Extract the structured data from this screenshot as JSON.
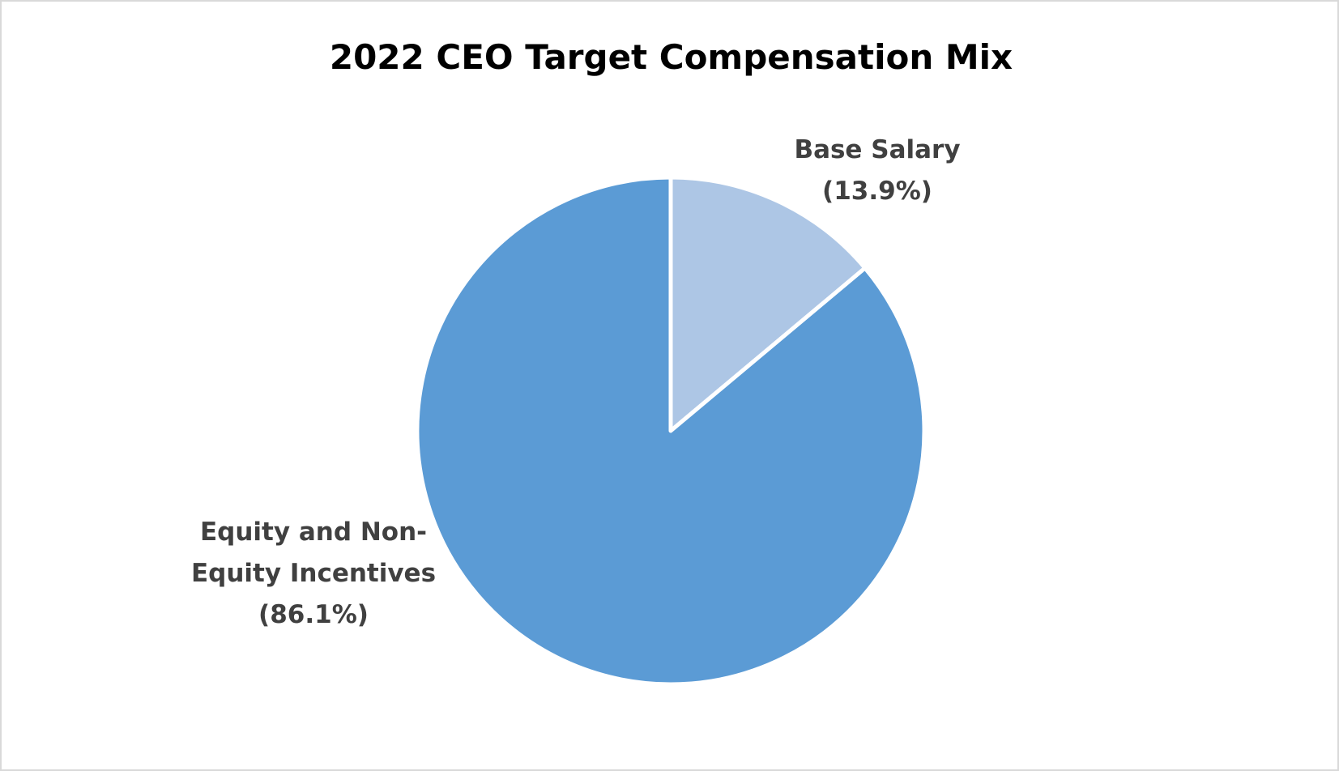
{
  "chart_data": {
    "type": "pie",
    "title": "2022 CEO Target Compensation Mix",
    "categories": [
      "Base Salary",
      "Equity and Non-Equity Incentives"
    ],
    "values": [
      13.9,
      86.1
    ],
    "value_labels": [
      "(13.9%)",
      "(86.1%)"
    ],
    "colors": [
      "#adc6e5",
      "#5b9bd5"
    ]
  }
}
